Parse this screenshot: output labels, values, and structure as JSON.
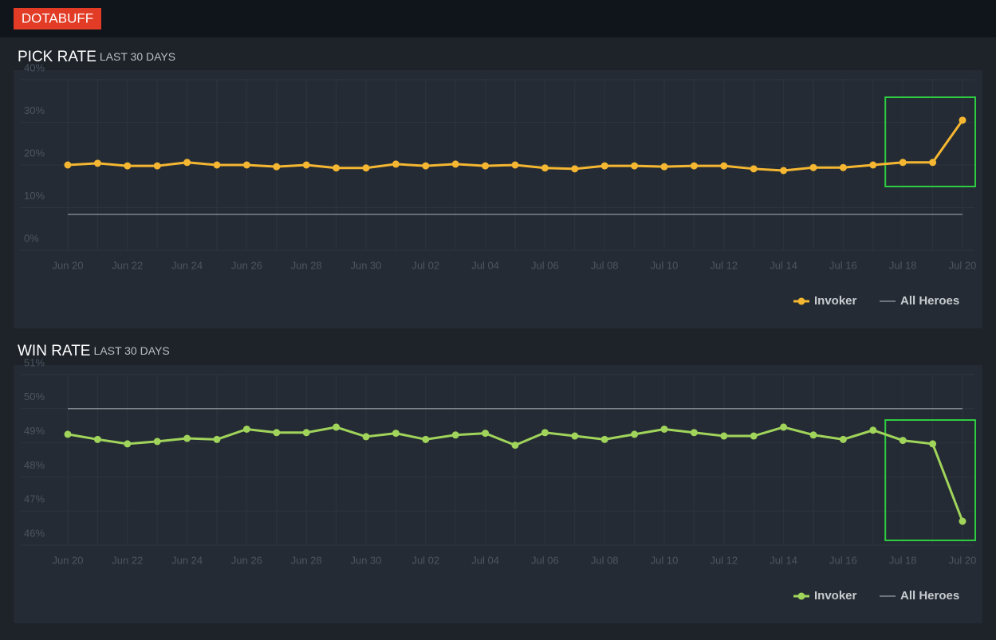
{
  "header": {
    "logo": "DOTABUFF"
  },
  "chart_data": [
    {
      "type": "line",
      "title": "PICK RATE",
      "subtitle": "LAST 30 DAYS",
      "categories": [
        "Jun 20",
        null,
        "Jun 22",
        null,
        "Jun 24",
        null,
        "Jun 26",
        null,
        "Jun 28",
        null,
        "Jun 30",
        null,
        "Jul 02",
        null,
        "Jul 04",
        null,
        "Jul 06",
        null,
        "Jul 08",
        null,
        "Jul 10",
        null,
        "Jul 12",
        null,
        "Jul 14",
        null,
        "Jul 16",
        null,
        "Jul 18",
        null,
        "Jul 20"
      ],
      "ylim": [
        0,
        40
      ],
      "yticks": [
        {
          "value": 0,
          "label": "0%"
        },
        {
          "value": 10,
          "label": "10%"
        },
        {
          "value": 20,
          "label": "20%"
        },
        {
          "value": 30,
          "label": "30%"
        },
        {
          "value": 40,
          "label": "40%"
        }
      ],
      "grid": true,
      "legend": "bottom-right",
      "series": [
        {
          "name": "Invoker",
          "color": "#f5b731",
          "markers": true,
          "values": [
            20.0,
            20.4,
            19.8,
            19.8,
            20.6,
            20.0,
            20.0,
            19.6,
            20.0,
            19.3,
            19.3,
            20.2,
            19.8,
            20.2,
            19.8,
            20.0,
            19.3,
            19.1,
            19.8,
            19.8,
            19.6,
            19.8,
            19.8,
            19.1,
            18.7,
            19.4,
            19.4,
            20.0,
            20.6,
            20.6,
            30.5
          ]
        },
        {
          "name": "All Heroes",
          "color": "#9aa0a6",
          "markers": false,
          "values": [
            8.4,
            8.4,
            8.4,
            8.4,
            8.4,
            8.4,
            8.4,
            8.4,
            8.4,
            8.4,
            8.4,
            8.4,
            8.4,
            8.4,
            8.4,
            8.4,
            8.4,
            8.4,
            8.4,
            8.4,
            8.4,
            8.4,
            8.4,
            8.4,
            8.4,
            8.4,
            8.4,
            8.4,
            8.4,
            8.4,
            8.4
          ]
        }
      ]
    },
    {
      "type": "line",
      "title": "WIN RATE",
      "subtitle": "LAST 30 DAYS",
      "categories": [
        "Jun 20",
        null,
        "Jun 22",
        null,
        "Jun 24",
        null,
        "Jun 26",
        null,
        "Jun 28",
        null,
        "Jun 30",
        null,
        "Jul 02",
        null,
        "Jul 04",
        null,
        "Jul 06",
        null,
        "Jul 08",
        null,
        "Jul 10",
        null,
        "Jul 12",
        null,
        "Jul 14",
        null,
        "Jul 16",
        null,
        "Jul 18",
        null,
        "Jul 20"
      ],
      "ylim": [
        46,
        51
      ],
      "yticks": [
        {
          "value": 46,
          "label": "46%"
        },
        {
          "value": 47,
          "label": "47%"
        },
        {
          "value": 48,
          "label": "48%"
        },
        {
          "value": 49,
          "label": "49%"
        },
        {
          "value": 50,
          "label": "50%"
        },
        {
          "value": 51,
          "label": "51%"
        }
      ],
      "grid": true,
      "legend": "bottom-right",
      "series": [
        {
          "name": "Invoker",
          "color": "#a0d45a",
          "markers": true,
          "values": [
            49.25,
            49.1,
            48.97,
            49.04,
            49.13,
            49.1,
            49.4,
            49.3,
            49.3,
            49.46,
            49.18,
            49.28,
            49.1,
            49.23,
            49.28,
            48.93,
            49.3,
            49.2,
            49.1,
            49.25,
            49.4,
            49.3,
            49.2,
            49.2,
            49.46,
            49.23,
            49.1,
            49.37,
            49.07,
            48.97,
            46.7
          ]
        },
        {
          "name": "All Heroes",
          "color": "#9aa0a6",
          "markers": false,
          "values": [
            50,
            50,
            50,
            50,
            50,
            50,
            50,
            50,
            50,
            50,
            50,
            50,
            50,
            50,
            50,
            50,
            50,
            50,
            50,
            50,
            50,
            50,
            50,
            50,
            50,
            50,
            50,
            50,
            50,
            50,
            50
          ]
        }
      ]
    }
  ]
}
